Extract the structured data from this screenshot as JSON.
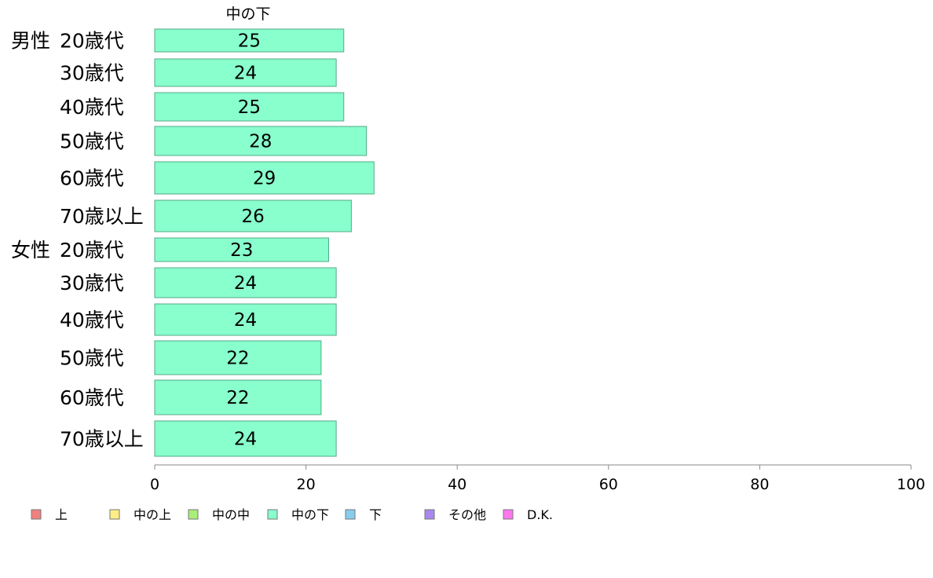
{
  "chart_data": {
    "type": "bar",
    "orientation": "horizontal",
    "title": "中の下",
    "groups": [
      {
        "label": "男性",
        "categories": [
          "20歳代",
          "30歳代",
          "40歳代",
          "50歳代",
          "60歳代",
          "70歳以上"
        ]
      },
      {
        "label": "女性",
        "categories": [
          "20歳代",
          "30歳代",
          "40歳代",
          "50歳代",
          "60歳代",
          "70歳以上"
        ]
      }
    ],
    "series": [
      {
        "name": "中の下",
        "color": "#88ffcc",
        "values": [
          25,
          24,
          25,
          28,
          29,
          26,
          23,
          24,
          24,
          22,
          22,
          24
        ]
      }
    ],
    "xlim": [
      0,
      100
    ],
    "xticks": [
      "0",
      "20",
      "40",
      "60",
      "80",
      "100"
    ],
    "grid": false,
    "legend_position": "bottom",
    "legend": [
      {
        "label": "上",
        "color": "#f08080"
      },
      {
        "label": "中の上",
        "color": "#ffee88"
      },
      {
        "label": "中の中",
        "color": "#aaee77"
      },
      {
        "label": "中の下",
        "color": "#88ffcc"
      },
      {
        "label": "下",
        "color": "#88ccee"
      },
      {
        "label": "その他",
        "color": "#aa88ee"
      },
      {
        "label": "D.K.",
        "color": "#ff77ee"
      }
    ]
  }
}
